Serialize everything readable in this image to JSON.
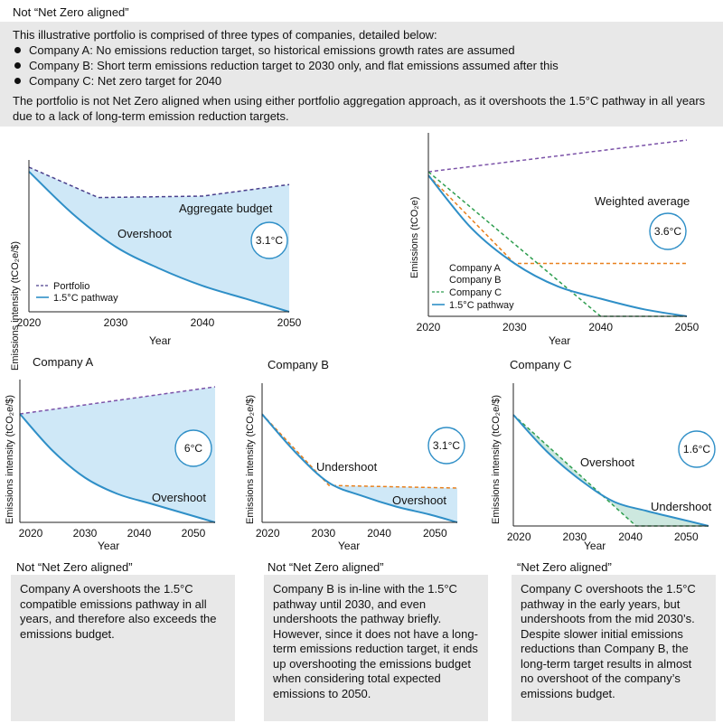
{
  "header": {
    "title": "Not “Net Zero aligned”",
    "intro": "This illustrative portfolio is comprised of three types of companies, detailed below:",
    "bullets": [
      "Company A: No emissions reduction target, so historical emissions growth rates are assumed",
      "Company B: Short term emissions reduction target to 2030 only, and flat emissions assumed after this",
      "Company C: Net zero target for 2040"
    ],
    "summary": "The portfolio is not Net Zero aligned when using either portfolio aggregation approach, as it overshoots the 1.5°C pathway in all years due to a lack of long-term emission reduction targets."
  },
  "colors": {
    "fill": "#cfe8f7",
    "pathway": "#2f8fc7",
    "portfolio": "#4a3f8c",
    "company_a": "#7b52a8",
    "company_b": "#e8801e",
    "company_c": "#2e9e4f",
    "undershoot_fill": "#cde8df"
  },
  "chart_data": [
    {
      "type": "area",
      "ylabel": "Emissions intensity (tCO₂e/$)",
      "xlabel": "Year",
      "x_ticks": [
        "2020",
        "2030",
        "2040",
        "2050"
      ],
      "xlim": [
        2020,
        2050
      ],
      "ylim": [
        0,
        1
      ],
      "series": [
        {
          "name": "Portfolio",
          "x": [
            2020,
            2028,
            2040,
            2050
          ],
          "y": [
            1.0,
            0.79,
            0.8,
            0.88
          ]
        },
        {
          "name": "1.5°C pathway",
          "x": [
            2020,
            2025,
            2030,
            2035,
            2040,
            2045,
            2050
          ],
          "y": [
            0.97,
            0.68,
            0.45,
            0.3,
            0.18,
            0.09,
            0.0
          ]
        }
      ],
      "annotations": [
        "Aggregate budget",
        "Overshoot"
      ],
      "badge": "3.1°C"
    },
    {
      "type": "line",
      "title": "Weighted average",
      "ylabel": "Emissions (tCO₂e)",
      "xlabel": "Year",
      "x_ticks": [
        "2020",
        "2030",
        "2040",
        "2050"
      ],
      "xlim": [
        2020,
        2050
      ],
      "ylim": [
        0,
        1
      ],
      "series": [
        {
          "name": "Company A",
          "x": [
            2020,
            2050
          ],
          "y": [
            0.82,
            1.0
          ]
        },
        {
          "name": "Company B",
          "x": [
            2020,
            2030,
            2050
          ],
          "y": [
            0.8,
            0.3,
            0.3
          ]
        },
        {
          "name": "Company C",
          "x": [
            2020,
            2040,
            2050
          ],
          "y": [
            0.82,
            0.0,
            0.0
          ]
        },
        {
          "name": "1.5°C pathway",
          "x": [
            2020,
            2025,
            2030,
            2035,
            2040,
            2045,
            2050
          ],
          "y": [
            0.8,
            0.5,
            0.3,
            0.17,
            0.1,
            0.04,
            0.0
          ]
        }
      ],
      "badge": "3.6°C"
    },
    {
      "type": "area",
      "title": "Company A",
      "ylabel": "Emissions intensity (tCO₂e/$)",
      "xlabel": "Year",
      "x_ticks": [
        "2020",
        "2030",
        "2040",
        "2050"
      ],
      "xlim": [
        2018,
        2054
      ],
      "ylim": [
        0,
        1
      ],
      "series": [
        {
          "name": "Company A",
          "x": [
            2018,
            2054
          ],
          "y": [
            0.8,
            1.0
          ]
        },
        {
          "name": "1.5°C pathway",
          "x": [
            2018,
            2024,
            2030,
            2036,
            2042,
            2048,
            2054
          ],
          "y": [
            0.8,
            0.53,
            0.33,
            0.21,
            0.14,
            0.07,
            0.0
          ]
        }
      ],
      "annotations": [
        "Overshoot"
      ],
      "badge": "6°C"
    },
    {
      "type": "area",
      "title": "Company B",
      "ylabel": "Emissions intensity (tCO₂e/$)",
      "xlabel": "Year",
      "x_ticks": [
        "2020",
        "2030",
        "2040",
        "2050"
      ],
      "xlim": [
        2019,
        2054
      ],
      "ylim": [
        0,
        1
      ],
      "series": [
        {
          "name": "Company B",
          "x": [
            2019,
            2031,
            2054
          ],
          "y": [
            0.82,
            0.28,
            0.26
          ]
        },
        {
          "name": "1.5°C pathway",
          "x": [
            2019,
            2025,
            2031,
            2037,
            2043,
            2049,
            2054
          ],
          "y": [
            0.82,
            0.53,
            0.3,
            0.2,
            0.12,
            0.06,
            0.0
          ]
        }
      ],
      "annotations": [
        "Undershoot",
        "Overshoot"
      ],
      "badge": "3.1°C"
    },
    {
      "type": "area",
      "title": "Company C",
      "ylabel": "Emissions intensity (tCO₂e/$)",
      "xlabel": "Year",
      "x_ticks": [
        "2020",
        "2030",
        "2040",
        "2050"
      ],
      "xlim": [
        2019,
        2054
      ],
      "ylim": [
        0,
        1
      ],
      "series": [
        {
          "name": "Company C",
          "x": [
            2019,
            2041,
            2054
          ],
          "y": [
            0.82,
            0.0,
            0.0
          ]
        },
        {
          "name": "1.5°C pathway",
          "x": [
            2019,
            2025,
            2031,
            2037,
            2043,
            2049,
            2054
          ],
          "y": [
            0.82,
            0.55,
            0.34,
            0.18,
            0.11,
            0.05,
            0.0
          ]
        }
      ],
      "annotations": [
        "Overshoot",
        "Undershoot"
      ],
      "badge": "1.6°C"
    }
  ],
  "legend": {
    "top_left": [
      "Portfolio",
      "1.5°C pathway"
    ],
    "top_right": [
      "Company A",
      "Company B",
      "Company C",
      "1.5°C pathway"
    ]
  },
  "bottom": [
    {
      "status": "Not “Net Zero aligned”",
      "text": "Company A overshoots the 1.5°C compatible emissions pathway in all years, and therefore also exceeds the emissions budget."
    },
    {
      "status": "Not “Net Zero aligned”",
      "text": "Company B is in-line with the 1.5°C pathway until 2030, and even undershoots the pathway briefly. However, since it does not have a long-term emissions reduction target, it ends up overshooting the emissions budget when considering total expected emissions to 2050."
    },
    {
      "status": "“Net Zero aligned”",
      "text": "Company C overshoots the 1.5°C pathway in the early years, but undershoots from the mid 2030’s. Despite slower initial emissions reductions than Company B, the long-term target results in almost no overshoot of the company’s emissions budget."
    }
  ]
}
